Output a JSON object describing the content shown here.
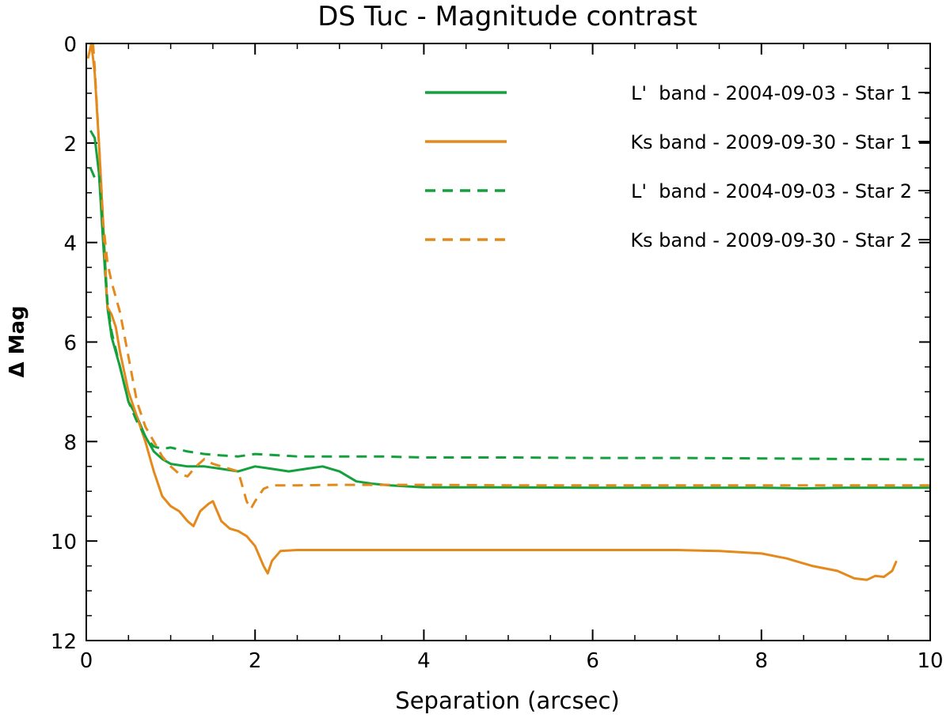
{
  "chart_data": {
    "type": "line",
    "title": "DS Tuc - Magnitude contrast",
    "xlabel": "Separation (arcsec)",
    "ylabel": "Δ Mag",
    "xlim": [
      0,
      10
    ],
    "ylim": [
      0,
      12
    ],
    "y_inverted": true,
    "grid": false,
    "legend_position": "top-right",
    "xticks": [
      0,
      2,
      4,
      6,
      8,
      10
    ],
    "yticks": [
      0,
      2,
      4,
      6,
      8,
      10,
      12
    ],
    "colors": {
      "green": "#14a03c",
      "orange": "#e48a1c"
    },
    "series": [
      {
        "name": "L'  band - 2004-09-03 - Star 1",
        "color": "#14a03c",
        "dash": "solid",
        "x": [
          0.05,
          0.1,
          0.15,
          0.2,
          0.25,
          0.3,
          0.35,
          0.4,
          0.5,
          0.6,
          0.7,
          0.8,
          0.9,
          1.0,
          1.2,
          1.4,
          1.6,
          1.8,
          2.0,
          2.2,
          2.4,
          2.6,
          2.8,
          2.9,
          3.0,
          3.1,
          3.2,
          3.4,
          3.6,
          3.8,
          4.0,
          5.0,
          6.0,
          7.0,
          8.0,
          8.5,
          9.0,
          9.5,
          10.0
        ],
        "y": [
          1.75,
          1.9,
          2.6,
          4.0,
          5.3,
          5.9,
          6.2,
          6.5,
          7.2,
          7.5,
          7.9,
          8.2,
          8.35,
          8.45,
          8.5,
          8.5,
          8.55,
          8.6,
          8.5,
          8.55,
          8.6,
          8.55,
          8.5,
          8.55,
          8.6,
          8.7,
          8.8,
          8.85,
          8.88,
          8.9,
          8.92,
          8.92,
          8.93,
          8.93,
          8.93,
          8.94,
          8.93,
          8.93,
          8.93
        ]
      },
      {
        "name": "Ks band - 2009-09-30 - Star 1",
        "color": "#e48a1c",
        "dash": "solid",
        "x": [
          0.02,
          0.06,
          0.1,
          0.15,
          0.2,
          0.25,
          0.3,
          0.35,
          0.4,
          0.5,
          0.6,
          0.7,
          0.8,
          0.9,
          1.0,
          1.1,
          1.2,
          1.27,
          1.35,
          1.45,
          1.5,
          1.6,
          1.7,
          1.8,
          1.9,
          2.0,
          2.1,
          2.15,
          2.2,
          2.3,
          2.5,
          3.0,
          4.0,
          5.0,
          6.0,
          7.0,
          7.5,
          8.0,
          8.3,
          8.6,
          8.9,
          9.1,
          9.25,
          9.35,
          9.45,
          9.55,
          9.6
        ],
        "y": [
          0.3,
          0.0,
          0.6,
          2.0,
          3.6,
          5.3,
          5.45,
          5.7,
          6.2,
          7.0,
          7.5,
          8.0,
          8.6,
          9.1,
          9.3,
          9.4,
          9.6,
          9.7,
          9.4,
          9.25,
          9.2,
          9.6,
          9.75,
          9.8,
          9.9,
          10.1,
          10.5,
          10.65,
          10.4,
          10.2,
          10.18,
          10.18,
          10.18,
          10.18,
          10.18,
          10.18,
          10.2,
          10.25,
          10.35,
          10.5,
          10.6,
          10.75,
          10.78,
          10.7,
          10.72,
          10.6,
          10.4
        ]
      },
      {
        "name": "L'  band - 2004-09-03 - Star 2",
        "color": "#14a03c",
        "dash": "dashed",
        "x": [
          0.05,
          0.1,
          0.15,
          0.2,
          0.25,
          0.3,
          0.4,
          0.5,
          0.6,
          0.7,
          0.8,
          0.9,
          1.0,
          1.2,
          1.4,
          1.6,
          1.8,
          2.0,
          2.5,
          3.0,
          3.5,
          4.0,
          5.0,
          6.0,
          7.0,
          8.0,
          9.0,
          10.0
        ],
        "y": [
          2.5,
          2.7,
          2.6,
          3.8,
          5.2,
          5.8,
          6.5,
          7.2,
          7.6,
          7.9,
          8.1,
          8.15,
          8.12,
          8.2,
          8.25,
          8.28,
          8.3,
          8.25,
          8.3,
          8.3,
          8.3,
          8.32,
          8.32,
          8.33,
          8.33,
          8.34,
          8.35,
          8.36
        ]
      },
      {
        "name": "Ks band - 2009-09-30 - Star 2",
        "color": "#e48a1c",
        "dash": "dashed",
        "x": [
          0.08,
          0.1,
          0.15,
          0.2,
          0.25,
          0.3,
          0.4,
          0.5,
          0.6,
          0.7,
          0.8,
          0.9,
          1.0,
          1.1,
          1.2,
          1.3,
          1.4,
          1.5,
          1.6,
          1.7,
          1.8,
          1.9,
          1.95,
          2.0,
          2.1,
          2.2,
          2.5,
          3.0,
          3.5,
          4.0,
          5.0,
          6.0,
          7.0,
          8.0,
          9.0,
          10.0
        ],
        "y": [
          0.0,
          0.5,
          2.0,
          3.6,
          4.4,
          4.8,
          5.4,
          6.3,
          7.2,
          7.7,
          8.0,
          8.3,
          8.5,
          8.65,
          8.7,
          8.5,
          8.35,
          8.45,
          8.5,
          8.55,
          8.6,
          9.2,
          9.35,
          9.2,
          8.95,
          8.88,
          8.88,
          8.87,
          8.87,
          8.87,
          8.88,
          8.88,
          8.88,
          8.88,
          8.88,
          8.88
        ]
      }
    ]
  }
}
